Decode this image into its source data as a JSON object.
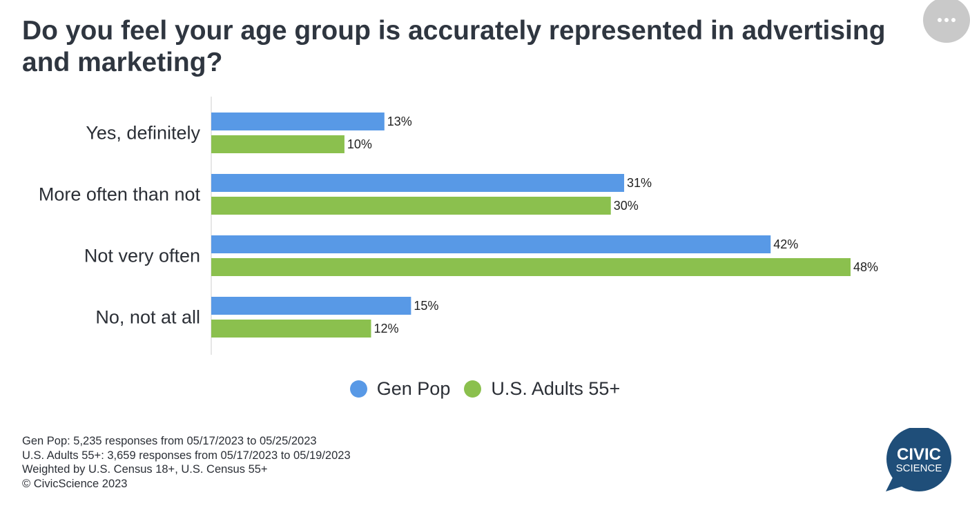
{
  "header": {
    "title": "Do you feel your age group is accurately represented in advertising and marketing?"
  },
  "chart_data": {
    "type": "bar",
    "orientation": "horizontal",
    "title": "Do you feel your age group is accurately represented in advertising and marketing?",
    "categories": [
      "Yes, definitely",
      "More often than not",
      "Not very often",
      "No, not at all"
    ],
    "series": [
      {
        "name": "Gen Pop",
        "color": "#5899e6",
        "values": [
          13,
          31,
          42,
          15
        ]
      },
      {
        "name": "U.S. Adults 55+",
        "color": "#8bc04e",
        "values": [
          10,
          30,
          48,
          12
        ]
      }
    ],
    "value_suffix": "%",
    "xlim": [
      0,
      48
    ],
    "legend_position": "bottom",
    "grid": false
  },
  "footer": {
    "lines": [
      "Gen Pop: 5,235 responses from 05/17/2023 to 05/25/2023",
      "U.S. Adults 55+: 3,659 responses from 05/17/2023 to 05/19/2023",
      "Weighted by U.S. Census 18+, U.S. Census 55+",
      "© CivicScience 2023"
    ]
  },
  "logo": {
    "line1": "CIVIC",
    "line2": "SCIENCE",
    "color": "#1f4e79"
  },
  "menu": {
    "icon": "more-horizontal-icon"
  }
}
